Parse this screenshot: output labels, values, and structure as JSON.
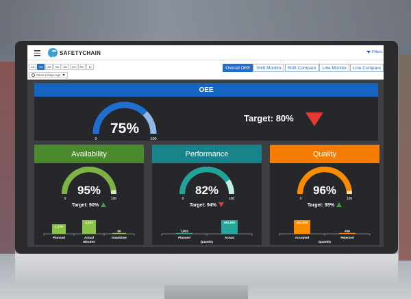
{
  "app": {
    "logo_text": "SAFETYCHAIN",
    "filters_label": "Filters"
  },
  "controls": {
    "pills": [
      {
        "label": "1d",
        "active": false
      },
      {
        "label": "2d",
        "active": true
      },
      {
        "label": "3d",
        "active": false
      },
      {
        "label": "1w",
        "active": false
      },
      {
        "label": "2w",
        "active": false
      },
      {
        "label": "1m",
        "active": false
      },
      {
        "label": "6m",
        "active": false
      },
      {
        "label": "1y",
        "active": false
      }
    ],
    "since_label": "Since 2 Days Ago",
    "tabs": [
      {
        "label": "Overall OEE",
        "active": true
      },
      {
        "label": "Shift Monitor",
        "active": false
      },
      {
        "label": "Shift Compare",
        "active": false
      },
      {
        "label": "Line Monitor",
        "active": false
      },
      {
        "label": "Line Compare",
        "active": false
      }
    ]
  },
  "oee": {
    "title": "OEE",
    "value_label": "75%",
    "value": 0.75,
    "min": "0",
    "max": "100",
    "target_label": "Target: 80%",
    "trend": "down",
    "colors": {
      "header": "#1565c0",
      "fill": "#1e6fcf",
      "track": "#90b9e8",
      "trend": "#e53935"
    }
  },
  "cards": {
    "availability": {
      "title": "Availability",
      "value_label": "95%",
      "value": 0.95,
      "min": "0",
      "max": "100",
      "target_label": "Target: 90%",
      "trend": "up",
      "colors": {
        "header": "#4a8a2c",
        "fill": "#7cb342",
        "track": "#d7e8c6",
        "bar": "#8bc34a"
      },
      "bars": [
        {
          "value_label": "1,770",
          "value": 1770,
          "category": "Planned"
        },
        {
          "value_label": "2,531",
          "value": 2531,
          "category": "Actual"
        },
        {
          "value_label": "90",
          "value": 90,
          "category": "Downtime"
        }
      ],
      "unit_label": "Minutes"
    },
    "performance": {
      "title": "Performance",
      "value_label": "82%",
      "value": 0.82,
      "min": "0",
      "max": "100",
      "target_label": "Target: 94%",
      "trend": "down",
      "colors": {
        "header": "#17838a",
        "fill": "#22a39a",
        "track": "#c3ece6",
        "bar": "#26a69a"
      },
      "bars": [
        {
          "value_label": "7,803",
          "value": 7803,
          "category": "Planned"
        },
        {
          "value_label": "481,935",
          "value": 481935,
          "category": "Actual"
        }
      ],
      "unit_label": "Quantity"
    },
    "quality": {
      "title": "Quality",
      "value_label": "96%",
      "value": 0.96,
      "min": "0",
      "max": "100",
      "target_label": "Target: 95%",
      "trend": "up",
      "colors": {
        "header": "#f57c00",
        "fill": "#fb8c00",
        "track": "#ffe0b2",
        "bar": "#fb8c00"
      },
      "bars": [
        {
          "value_label": "481,935",
          "value": 481935,
          "category": "Accepted"
        },
        {
          "value_label": "438",
          "value": 438,
          "category": "Rejected"
        }
      ],
      "unit_label": "Quantity"
    }
  }
}
